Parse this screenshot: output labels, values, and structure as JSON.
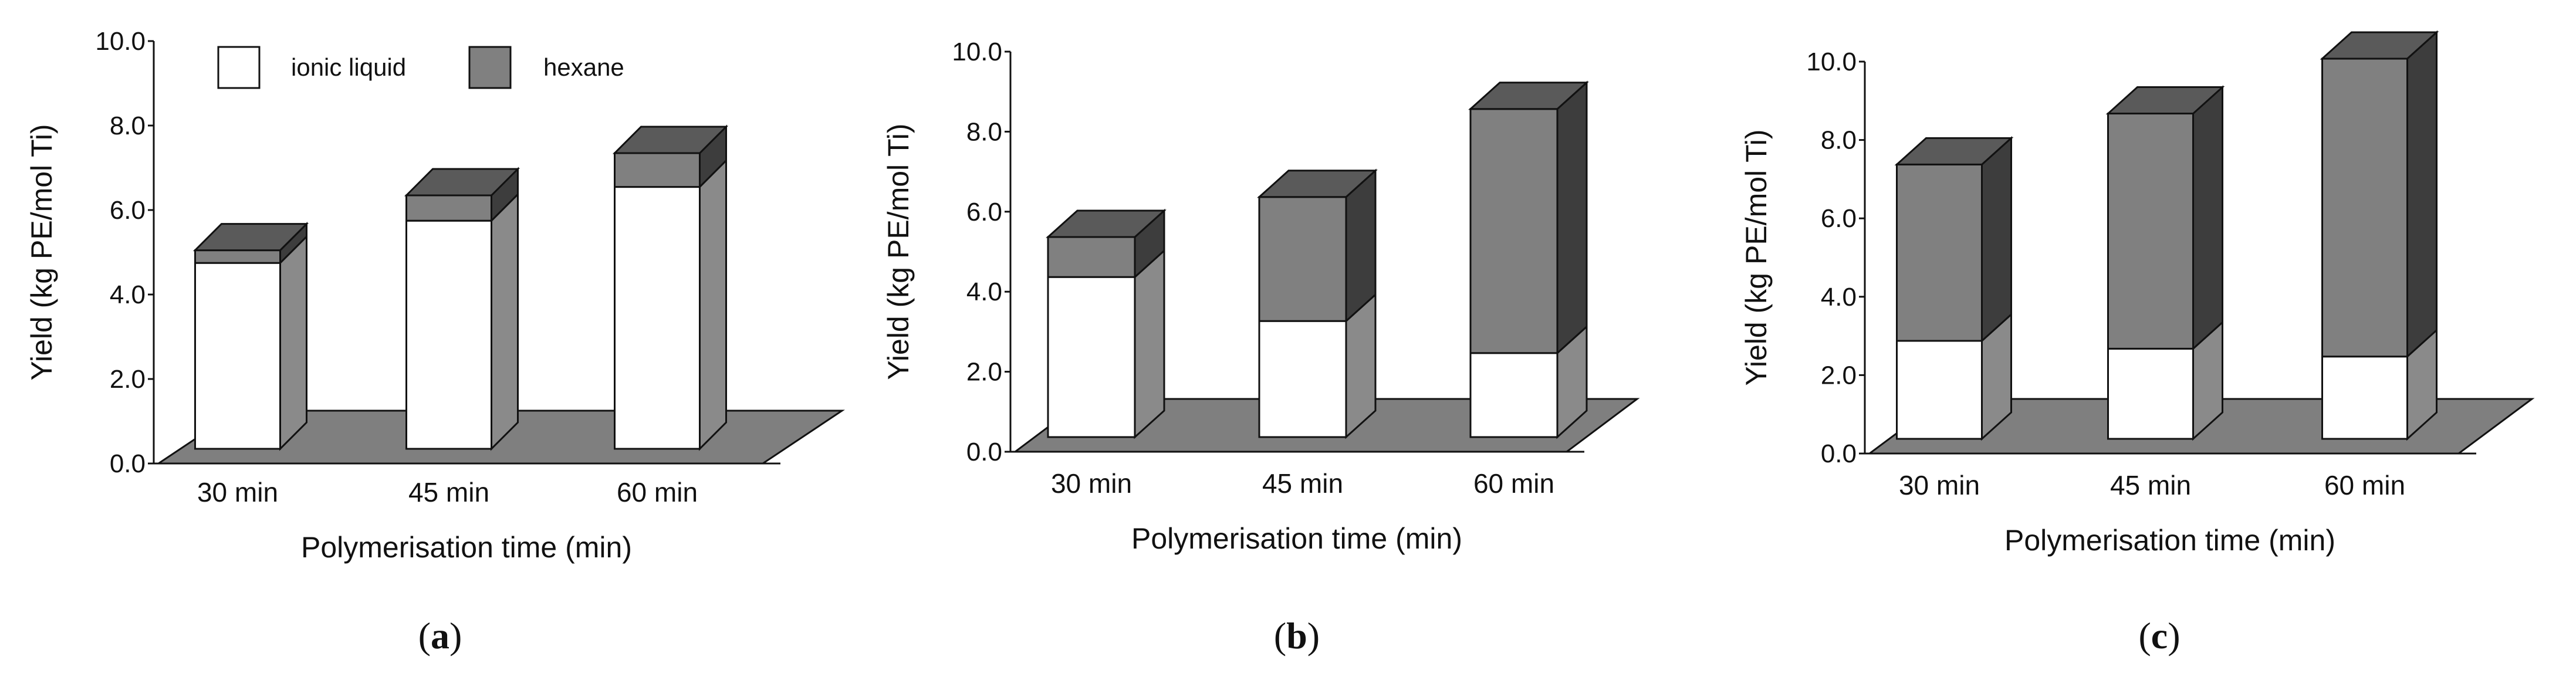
{
  "figure": {
    "legend": [
      {
        "label": "ionic liquid",
        "color": "#ffffff"
      },
      {
        "label": "hexane",
        "color": "#808080"
      }
    ]
  },
  "colors": {
    "ionic_front": "#ffffff",
    "ionic_side": "#8a8a8a",
    "hexane_front": "#808080",
    "hexane_side": "#3d3d3d",
    "hexane_top": "#5a5a5a",
    "floor": "#7f7f7f",
    "outline": "#111111"
  },
  "chart_data": [
    {
      "type": "bar",
      "stacked": true,
      "panel_label": {
        "open": "(",
        "letter": "a",
        "close": ")"
      },
      "categories": [
        "30 min",
        "45 min",
        "60 min"
      ],
      "series": [
        {
          "name": "ionic liquid",
          "values": [
            4.4,
            5.4,
            6.2
          ]
        },
        {
          "name": "hexane",
          "values": [
            0.3,
            0.6,
            0.8
          ]
        }
      ],
      "xlabel": "Polymerisation time (min)",
      "ylabel": "Yield (kg PE/mol Ti)",
      "ylim": [
        0,
        10
      ],
      "yticks": [
        "0.0",
        "2.0",
        "4.0",
        "6.0",
        "8.0",
        "10.0"
      ],
      "legend_position": "top-left"
    },
    {
      "type": "bar",
      "stacked": true,
      "panel_label": {
        "open": "(",
        "letter": "b",
        "close": ")"
      },
      "categories": [
        "30 min",
        "45 min",
        "60 min"
      ],
      "series": [
        {
          "name": "ionic liquid",
          "values": [
            4.0,
            2.9,
            2.1
          ]
        },
        {
          "name": "hexane",
          "values": [
            1.0,
            3.1,
            6.1
          ]
        }
      ],
      "xlabel": "Polymerisation time (min)",
      "ylabel": "Yield (kg PE/mol Ti)",
      "ylim": [
        0,
        10
      ],
      "yticks": [
        "0.0",
        "2.0",
        "4.0",
        "6.0",
        "8.0",
        "10.0"
      ]
    },
    {
      "type": "bar",
      "stacked": true,
      "panel_label": {
        "open": "(",
        "letter": "c",
        "close": ")"
      },
      "categories": [
        "30 min",
        "45 min",
        "60 min"
      ],
      "series": [
        {
          "name": "ionic liquid",
          "values": [
            2.5,
            2.3,
            2.1
          ]
        },
        {
          "name": "hexane",
          "values": [
            4.5,
            6.0,
            7.6
          ]
        }
      ],
      "xlabel": "Polymerisation time (min)",
      "ylabel": "Yield (kg PE/mol Ti)",
      "ylim": [
        0,
        10
      ],
      "yticks": [
        "0.0",
        "2.0",
        "4.0",
        "6.0",
        "8.0",
        "10.0"
      ]
    }
  ]
}
